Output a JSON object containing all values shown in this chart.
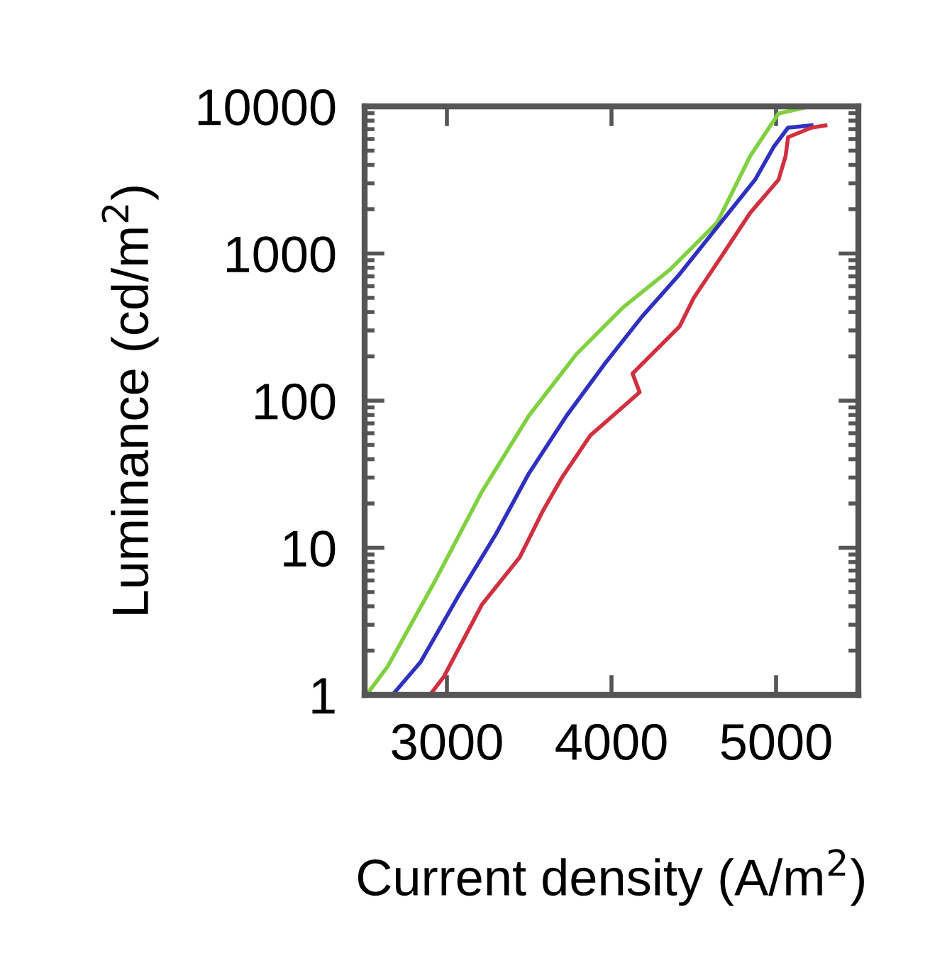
{
  "chart_data": {
    "type": "line",
    "xlabel": "Current density (A/m$^{2}$)",
    "ylabel": "Luminance (cd/m$^{2}$)",
    "log": "y",
    "xlim": [
      2500,
      5500
    ],
    "ylim": [
      1,
      10000
    ],
    "xticks": [
      3000,
      4000,
      5000
    ],
    "yticks": [
      1,
      10,
      100,
      1000,
      10000
    ],
    "grid": false,
    "legend": false,
    "marker": "none",
    "line_style": "solid",
    "series": [
      {
        "color": "#80d040",
        "x": [
          2511,
          2640,
          2926,
          3212,
          3498,
          3785,
          4071,
          4357,
          4643,
          4843,
          5015,
          5210
        ],
        "values": [
          1,
          1.56,
          5.9,
          24,
          79,
          206,
          431,
          780,
          1630,
          4600,
          8950,
          10000
        ]
      },
      {
        "color": "#3030c0",
        "x": [
          2669,
          2841,
          3069,
          3298,
          3498,
          3727,
          3957,
          4185,
          4414,
          4643,
          4872,
          4987,
          5073,
          5215
        ],
        "values": [
          1,
          1.68,
          4.7,
          12.4,
          32,
          79,
          177,
          372,
          724,
          1515,
          3170,
          5330,
          7170,
          7420
        ]
      },
      {
        "color": "#d03040",
        "x": [
          2897,
          2983,
          3212,
          3442,
          3584,
          3699,
          3871,
          4071,
          4171,
          4128,
          4214,
          4414,
          4500,
          4672,
          4843,
          5015,
          5058,
          5073,
          5215,
          5300
        ],
        "values": [
          1,
          1.34,
          4.1,
          8.6,
          17.9,
          30,
          58,
          91,
          114,
          153,
          191,
          320,
          500,
          970,
          1890,
          3170,
          4600,
          6170,
          7170,
          7420
        ]
      }
    ]
  }
}
